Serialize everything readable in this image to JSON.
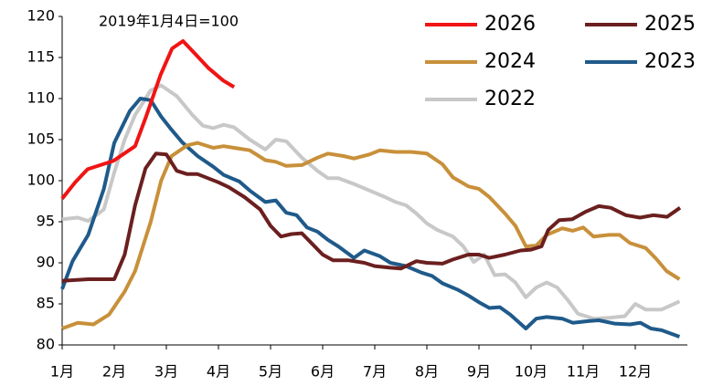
{
  "chart_data": {
    "type": "line",
    "annotation": "2019年1月4日=100",
    "xlim": [
      1,
      13
    ],
    "ylim": [
      80,
      120
    ],
    "yticks": [
      80,
      85,
      90,
      95,
      100,
      105,
      110,
      115,
      120
    ],
    "xticks": [
      {
        "value": 1,
        "label": "1月"
      },
      {
        "value": 2,
        "label": "2月"
      },
      {
        "value": 3,
        "label": "3月"
      },
      {
        "value": 4,
        "label": "4月"
      },
      {
        "value": 5,
        "label": "5月"
      },
      {
        "value": 6,
        "label": "6月"
      },
      {
        "value": 7,
        "label": "7月"
      },
      {
        "value": 8,
        "label": "8月"
      },
      {
        "value": 9,
        "label": "9月"
      },
      {
        "value": 10,
        "label": "10月"
      },
      {
        "value": 11,
        "label": "11月"
      },
      {
        "value": 12,
        "label": "12月"
      }
    ],
    "series": [
      {
        "name": "2026",
        "color": "#f01414",
        "x": [
          1,
          1.25,
          1.49,
          1.98,
          2.4,
          2.61,
          2.89,
          3.11,
          3.32,
          3.53,
          3.81,
          4.09,
          4.3
        ],
        "values": [
          97.8,
          99.8,
          101.4,
          102.4,
          104.2,
          107.8,
          112.9,
          116.1,
          117,
          115.6,
          113.7,
          112.2,
          111.4
        ]
      },
      {
        "name": "2025",
        "color": "#6b1f1f",
        "x": [
          1,
          1.5,
          2,
          2.2,
          2.4,
          2.6,
          2.8,
          3,
          3.2,
          3.4,
          3.6,
          4,
          4.2,
          4.5,
          4.8,
          5,
          5.2,
          5.4,
          5.6,
          5.8,
          6,
          6.2,
          6.5,
          6.8,
          7,
          7.3,
          7.5,
          7.8,
          8,
          8.3,
          8.5,
          8.8,
          9,
          9.2,
          9.5,
          9.8,
          10,
          10.2,
          10.33,
          10.54,
          10.79,
          11.04,
          11.3,
          11.53,
          11.82,
          12.09,
          12.35,
          12.61,
          12.86
        ],
        "values": [
          87.8,
          88,
          88,
          91,
          97,
          101.5,
          103.3,
          103.2,
          101.2,
          100.8,
          100.8,
          99.8,
          99.2,
          98,
          96.5,
          94.5,
          93.2,
          93.5,
          93.6,
          92.3,
          91,
          90.3,
          90.3,
          90,
          89.6,
          89.4,
          89.3,
          90.2,
          90,
          89.9,
          90.4,
          91,
          91,
          90.6,
          91,
          91.5,
          91.6,
          92,
          94,
          95.2,
          95.3,
          96.2,
          96.9,
          96.7,
          95.8,
          95.5,
          95.8,
          95.6,
          96.7
        ]
      },
      {
        "name": "2024",
        "color": "#c8903a",
        "x": [
          1,
          1.3,
          1.6,
          1.9,
          2.2,
          2.4,
          2.7,
          2.9,
          3.1,
          3.4,
          3.6,
          3.9,
          4.1,
          4.4,
          4.6,
          4.9,
          5.1,
          5.3,
          5.6,
          5.9,
          6.1,
          6.4,
          6.6,
          6.9,
          7.1,
          7.4,
          7.7,
          8,
          8.3,
          8.5,
          8.8,
          9,
          9.2,
          9.5,
          9.7,
          9.9,
          10.1,
          10.3,
          10.6,
          10.8,
          11,
          11.2,
          11.5,
          11.7,
          11.9,
          12.2,
          12.4,
          12.6,
          12.85
        ],
        "values": [
          82,
          82.7,
          82.5,
          83.7,
          86.5,
          89,
          95,
          100,
          103,
          104.3,
          104.6,
          104,
          104.2,
          103.9,
          103.7,
          102.5,
          102.3,
          101.8,
          101.9,
          102.8,
          103.3,
          103,
          102.7,
          103.2,
          103.7,
          103.5,
          103.5,
          103.3,
          102,
          100.4,
          99.3,
          99,
          98,
          96,
          94.5,
          92,
          92.1,
          93.4,
          94.2,
          93.9,
          94.3,
          93.2,
          93.4,
          93.4,
          92.4,
          91.8,
          90.5,
          89,
          88
        ]
      },
      {
        "name": "2023",
        "color": "#1f5a8a",
        "x": [
          1,
          1.2,
          1.5,
          1.8,
          2,
          2.3,
          2.5,
          2.7,
          2.9,
          3.1,
          3.3,
          3.6,
          3.9,
          4.1,
          4.4,
          4.6,
          4.9,
          5.1,
          5.3,
          5.5,
          5.7,
          5.9,
          6.1,
          6.3,
          6.6,
          6.8,
          7.1,
          7.3,
          7.6,
          7.9,
          8.1,
          8.3,
          8.6,
          8.8,
          9,
          9.2,
          9.4,
          9.6,
          9.9,
          10.1,
          10.3,
          10.6,
          10.8,
          11.1,
          11.3,
          11.6,
          11.9,
          12.1,
          12.3,
          12.5,
          12.85
        ],
        "values": [
          86.8,
          90.2,
          93.4,
          99,
          104.6,
          108.5,
          110,
          109.8,
          107.8,
          106.2,
          104.7,
          103,
          101.7,
          100.7,
          99.9,
          98.8,
          97.4,
          97.6,
          96.1,
          95.8,
          94.3,
          93.8,
          92.8,
          92,
          90.6,
          91.5,
          90.8,
          90,
          89.6,
          88.8,
          88.4,
          87.5,
          86.7,
          86,
          85.2,
          84.5,
          84.6,
          83.7,
          82,
          83.2,
          83.4,
          83.2,
          82.7,
          82.9,
          83,
          82.6,
          82.5,
          82.7,
          82,
          81.8,
          81
        ]
      },
      {
        "name": "2022",
        "color": "#c8c8c8",
        "x": [
          1,
          1.3,
          1.5,
          1.8,
          2,
          2.2,
          2.4,
          2.7,
          2.9,
          3.2,
          3.5,
          3.7,
          3.9,
          4.1,
          4.3,
          4.6,
          4.9,
          5.1,
          5.3,
          5.6,
          5.9,
          6.1,
          6.3,
          6.6,
          6.9,
          7.2,
          7.4,
          7.6,
          7.8,
          8,
          8.2,
          8.5,
          8.7,
          8.9,
          9.1,
          9.3,
          9.5,
          9.7,
          9.9,
          10.1,
          10.3,
          10.5,
          10.7,
          10.9,
          11.2,
          11.5,
          11.8,
          12,
          12.2,
          12.5,
          12.85
        ],
        "values": [
          95.3,
          95.5,
          95.1,
          96.5,
          101,
          105,
          108,
          111,
          111.6,
          110.3,
          108,
          106.7,
          106.4,
          106.8,
          106.5,
          105,
          103.8,
          105,
          104.8,
          102.8,
          101.2,
          100.3,
          100.3,
          99.6,
          98.8,
          98,
          97.4,
          97,
          96,
          94.8,
          94,
          93.2,
          92,
          90.1,
          91,
          88.5,
          88.6,
          87.6,
          85.8,
          87,
          87.6,
          87,
          85.5,
          83.8,
          83.2,
          83.3,
          83.5,
          85,
          84.3,
          84.3,
          85.3
        ]
      }
    ]
  }
}
